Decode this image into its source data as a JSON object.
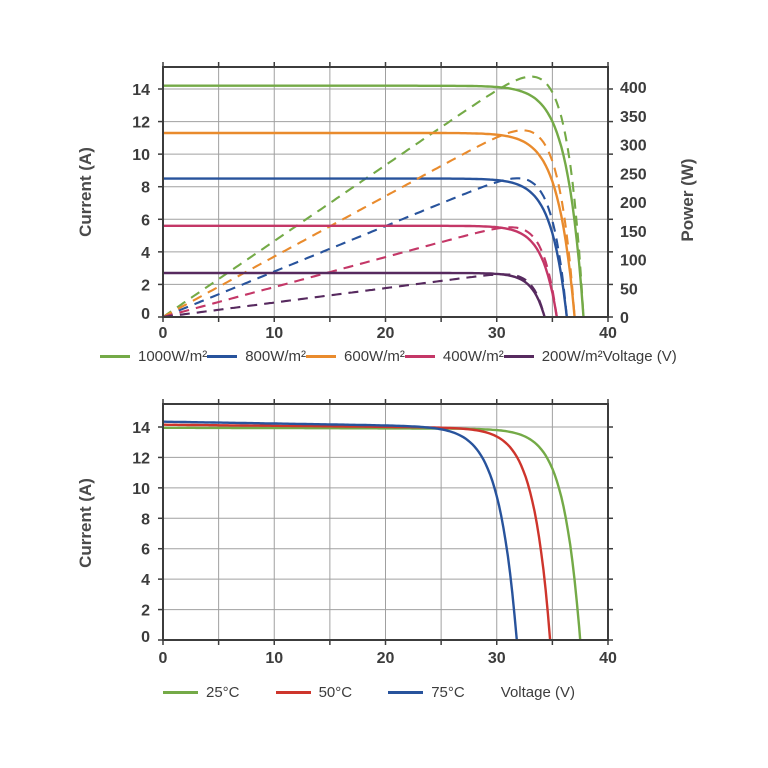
{
  "figure": {
    "background": "#ffffff",
    "grid_color": "#a0a0a0",
    "frame_color": "#3c3c3c",
    "text_color": "#3c3c3c"
  },
  "chart_data": [
    {
      "type": "line",
      "title": "",
      "xlabel": "Voltage (V)",
      "ylabel": "Current (A)",
      "ylabel_right": "Power (W)",
      "xlim": [
        0,
        40
      ],
      "ylim_left": [
        0,
        15.4
      ],
      "ylim_right": [
        0,
        435
      ],
      "x_grid_step": 5,
      "x_ticks": [
        0,
        10,
        20,
        30,
        40
      ],
      "y_ticks_left": [
        0,
        2,
        4,
        6,
        8,
        10,
        12,
        14
      ],
      "y_ticks_right": [
        0,
        50,
        100,
        150,
        200,
        250,
        300,
        350,
        400
      ],
      "grid": true,
      "legend_position": "bottom",
      "power_scale": 0.93,
      "series": [
        {
          "name": "1000W/m²",
          "color": "#74aa47",
          "style": "solid",
          "isc_A": 14.2,
          "voc_V": 37.8,
          "knee": 1.5,
          "pmax_W": 410,
          "points": [
            [
              0,
              14.2
            ],
            [
              10,
              14.2
            ],
            [
              20,
              14.2
            ],
            [
              30,
              14.1
            ],
            [
              33,
              13.6
            ],
            [
              35,
              12.0
            ],
            [
              36,
              9.9
            ],
            [
              37,
              5.9
            ],
            [
              37.8,
              0
            ]
          ]
        },
        {
          "name": "800W/m²",
          "color": "#28539c",
          "style": "solid",
          "isc_A": 8.5,
          "voc_V": 36.3,
          "knee": 1.4,
          "pmax_W": 240,
          "points": [
            [
              0,
              8.5
            ],
            [
              10,
              8.5
            ],
            [
              20,
              8.5
            ],
            [
              30,
              8.4
            ],
            [
              34,
              6.9
            ],
            [
              35.5,
              3.7
            ],
            [
              36.3,
              0
            ]
          ]
        },
        {
          "name": "600W/m²",
          "color": "#e98b2d",
          "style": "solid",
          "isc_A": 11.3,
          "voc_V": 37.0,
          "knee": 1.5,
          "pmax_W": 320,
          "points": [
            [
              0,
              11.3
            ],
            [
              10,
              11.3
            ],
            [
              20,
              11.3
            ],
            [
              30,
              11.2
            ],
            [
              34,
              9.8
            ],
            [
              36,
              5.5
            ],
            [
              37,
              0
            ]
          ]
        },
        {
          "name": "400W/m²",
          "color": "#c43767",
          "style": "solid",
          "isc_A": 5.6,
          "voc_V": 35.4,
          "knee": 1.3,
          "pmax_W": 158,
          "points": [
            [
              0,
              5.6
            ],
            [
              10,
              5.6
            ],
            [
              20,
              5.6
            ],
            [
              30,
              5.5
            ],
            [
              33,
              4.7
            ],
            [
              34.5,
              2.8
            ],
            [
              35.4,
              0
            ]
          ]
        },
        {
          "name": "200W/m²",
          "color": "#572a5f",
          "style": "solid",
          "isc_A": 2.7,
          "voc_V": 34.3,
          "knee": 1.1,
          "pmax_W": 76,
          "points": [
            [
              0,
              2.7
            ],
            [
              10,
              2.7
            ],
            [
              20,
              2.7
            ],
            [
              30,
              2.65
            ],
            [
              32,
              2.4
            ],
            [
              33.5,
              1.4
            ],
            [
              34.3,
              0
            ]
          ]
        }
      ],
      "dashed_power_curves": "Each irradiance series also has a dashed power curve P=V*I on the right axis, same color, peaking near 32 V"
    },
    {
      "type": "line",
      "title": "",
      "xlabel": "Voltage (V)",
      "ylabel": "Current (A)",
      "xlim": [
        0,
        40
      ],
      "ylim_left": [
        0,
        15.5
      ],
      "x_grid_step": 5,
      "x_ticks": [
        0,
        10,
        20,
        30,
        40
      ],
      "y_ticks_left": [
        0,
        2,
        4,
        6,
        8,
        10,
        12,
        14
      ],
      "grid": true,
      "legend_position": "bottom",
      "series": [
        {
          "name": "25°C",
          "color": "#74aa47",
          "style": "solid",
          "isc_A": 13.95,
          "voc_V": 37.5,
          "knee": 1.5,
          "slope": 0.002,
          "points": [
            [
              0,
              13.95
            ],
            [
              10,
              13.9
            ],
            [
              20,
              13.9
            ],
            [
              30,
              13.6
            ],
            [
              34,
              12.6
            ],
            [
              36,
              8.8
            ],
            [
              37,
              4.0
            ],
            [
              37.5,
              0
            ]
          ]
        },
        {
          "name": "50°C",
          "color": "#ce352c",
          "style": "solid",
          "isc_A": 14.15,
          "voc_V": 34.8,
          "knee": 1.5,
          "slope": 0.007,
          "points": [
            [
              0,
              14.15
            ],
            [
              10,
              14.1
            ],
            [
              20,
              14.0
            ],
            [
              30,
              13.4
            ],
            [
              33,
              9.8
            ],
            [
              34,
              5.8
            ],
            [
              34.8,
              0
            ]
          ]
        },
        {
          "name": "75°C",
          "color": "#28539c",
          "style": "solid",
          "isc_A": 14.35,
          "voc_V": 31.8,
          "knee": 1.6,
          "slope": 0.012,
          "points": [
            [
              0,
              14.35
            ],
            [
              10,
              14.25
            ],
            [
              20,
              14.1
            ],
            [
              25,
              13.85
            ],
            [
              28,
              12.7
            ],
            [
              30,
              9.5
            ],
            [
              31,
              5.5
            ],
            [
              31.8,
              0
            ]
          ]
        }
      ]
    }
  ]
}
